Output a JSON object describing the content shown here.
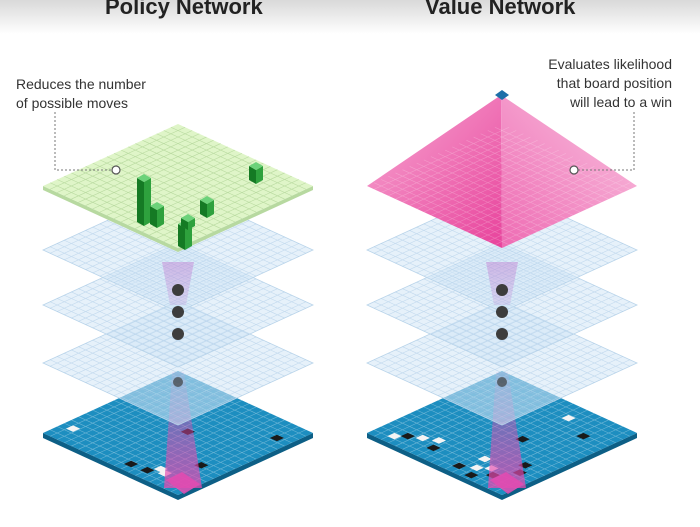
{
  "titles": {
    "policy": "Policy Network",
    "value": "Value Network"
  },
  "annotations": {
    "policy": "Reduces the number\nof possible moves",
    "value": "Evaluates likelihood\nthat board position\nwill lead to a win"
  },
  "colors": {
    "board_blue": "#1d8ec0",
    "board_edge": "#0d5f86",
    "policy_output": "#dff5c8",
    "policy_bars": "#1f8a2e",
    "value_output": "#e8439c",
    "hidden_layer": "#d2e6f6",
    "beam": "#e44ab0",
    "dot": "#3d3d3d"
  }
}
